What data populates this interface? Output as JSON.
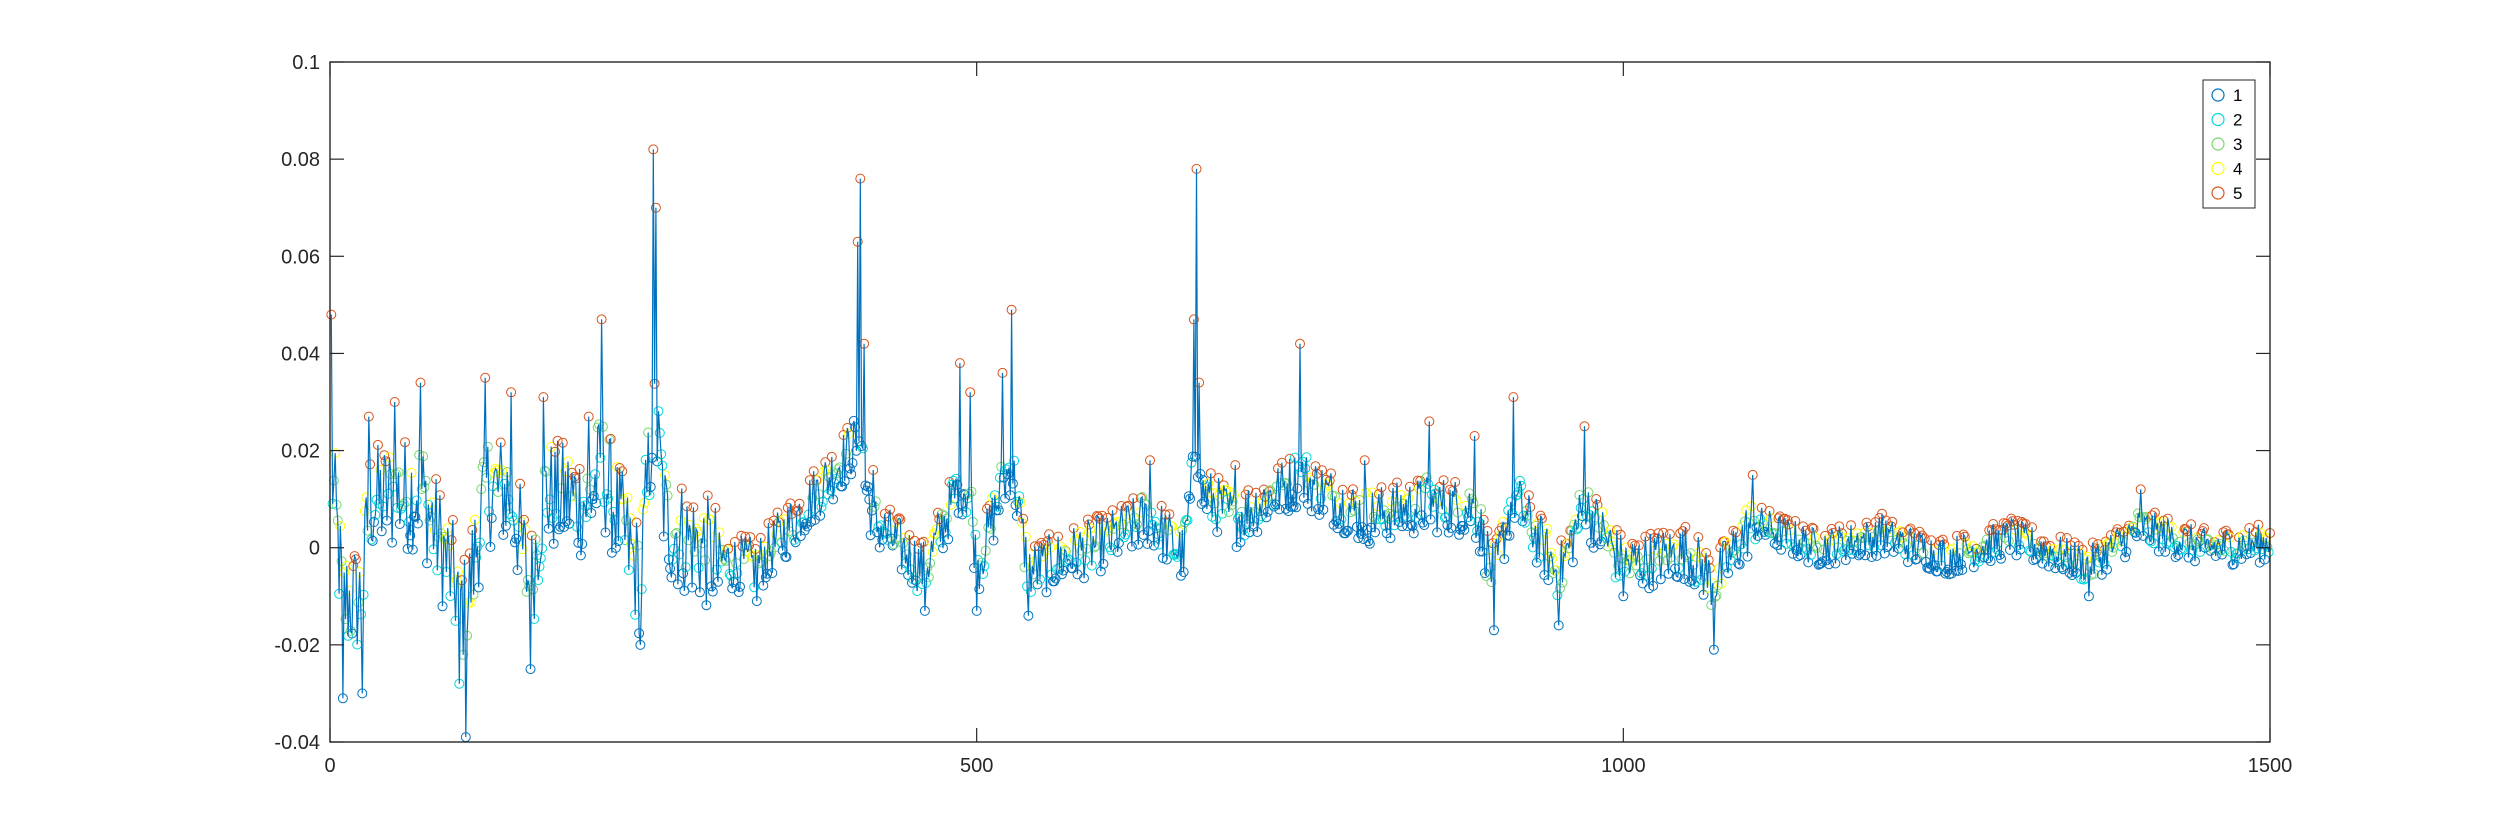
{
  "chart_data": {
    "type": "line",
    "title": "",
    "xlabel": "",
    "ylabel": "",
    "xlim": [
      0,
      1500
    ],
    "ylim": [
      -0.04,
      0.1
    ],
    "x_ticks": [
      0,
      500,
      1000,
      1500
    ],
    "x_tick_labels": [
      "0",
      "500",
      "1000",
      "1500"
    ],
    "y_ticks": [
      -0.04,
      -0.02,
      0,
      0.02,
      0.04,
      0.06,
      0.08,
      0.1
    ],
    "y_tick_labels": [
      "-0.04",
      "-0.02",
      "0",
      "0.02",
      "0.04",
      "0.06",
      "0.08",
      "0.1"
    ],
    "grid": false,
    "legend_position": "top-right",
    "line_color": "#0072BD",
    "n_points": 1500,
    "series": [
      {
        "name": "1",
        "marker": "circle",
        "color": "#0072BD"
      },
      {
        "name": "2",
        "marker": "circle",
        "color": "#00D8D8"
      },
      {
        "name": "3",
        "marker": "circle",
        "color": "#77D66B"
      },
      {
        "name": "4",
        "marker": "circle",
        "color": "#FFFF00"
      },
      {
        "name": "5",
        "marker": "circle",
        "color": "#D95319"
      }
    ],
    "series_classification": "each point marker colored by its value class; class 5 = highest local values, class 1 = lowest",
    "key_points": [
      {
        "x": 1,
        "y": 0.048
      },
      {
        "x": 10,
        "y": -0.031
      },
      {
        "x": 25,
        "y": -0.03
      },
      {
        "x": 30,
        "y": 0.027
      },
      {
        "x": 50,
        "y": 0.03
      },
      {
        "x": 70,
        "y": 0.034
      },
      {
        "x": 100,
        "y": -0.028
      },
      {
        "x": 105,
        "y": -0.039
      },
      {
        "x": 120,
        "y": 0.035
      },
      {
        "x": 140,
        "y": 0.032
      },
      {
        "x": 155,
        "y": -0.025
      },
      {
        "x": 165,
        "y": 0.031
      },
      {
        "x": 200,
        "y": 0.027
      },
      {
        "x": 210,
        "y": 0.047
      },
      {
        "x": 240,
        "y": -0.02
      },
      {
        "x": 250,
        "y": 0.082
      },
      {
        "x": 252,
        "y": 0.07
      },
      {
        "x": 260,
        "y": 0.013
      },
      {
        "x": 300,
        "y": -0.007
      },
      {
        "x": 330,
        "y": -0.011
      },
      {
        "x": 408,
        "y": 0.063
      },
      {
        "x": 410,
        "y": 0.076
      },
      {
        "x": 413,
        "y": 0.042
      },
      {
        "x": 420,
        "y": 0.016
      },
      {
        "x": 460,
        "y": -0.013
      },
      {
        "x": 487,
        "y": 0.038
      },
      {
        "x": 495,
        "y": 0.032
      },
      {
        "x": 500,
        "y": -0.013
      },
      {
        "x": 520,
        "y": 0.036
      },
      {
        "x": 527,
        "y": 0.049
      },
      {
        "x": 540,
        "y": -0.014
      },
      {
        "x": 600,
        "y": 0.004
      },
      {
        "x": 634,
        "y": 0.018
      },
      {
        "x": 660,
        "y": -0.005
      },
      {
        "x": 668,
        "y": 0.047
      },
      {
        "x": 670,
        "y": 0.078
      },
      {
        "x": 672,
        "y": 0.034
      },
      {
        "x": 700,
        "y": 0.017
      },
      {
        "x": 750,
        "y": 0.042
      },
      {
        "x": 800,
        "y": 0.018
      },
      {
        "x": 850,
        "y": 0.026
      },
      {
        "x": 885,
        "y": 0.023
      },
      {
        "x": 900,
        "y": -0.017
      },
      {
        "x": 915,
        "y": 0.031
      },
      {
        "x": 950,
        "y": -0.016
      },
      {
        "x": 970,
        "y": 0.025
      },
      {
        "x": 1000,
        "y": -0.01
      },
      {
        "x": 1050,
        "y": -0.002
      },
      {
        "x": 1070,
        "y": -0.021
      },
      {
        "x": 1100,
        "y": 0.015
      },
      {
        "x": 1150,
        "y": 0.0
      },
      {
        "x": 1200,
        "y": 0.007
      },
      {
        "x": 1250,
        "y": -0.005
      },
      {
        "x": 1300,
        "y": 0.006
      },
      {
        "x": 1360,
        "y": -0.01
      },
      {
        "x": 1400,
        "y": 0.012
      },
      {
        "x": 1450,
        "y": 0.0
      },
      {
        "x": 1500,
        "y": 0.003
      }
    ]
  }
}
